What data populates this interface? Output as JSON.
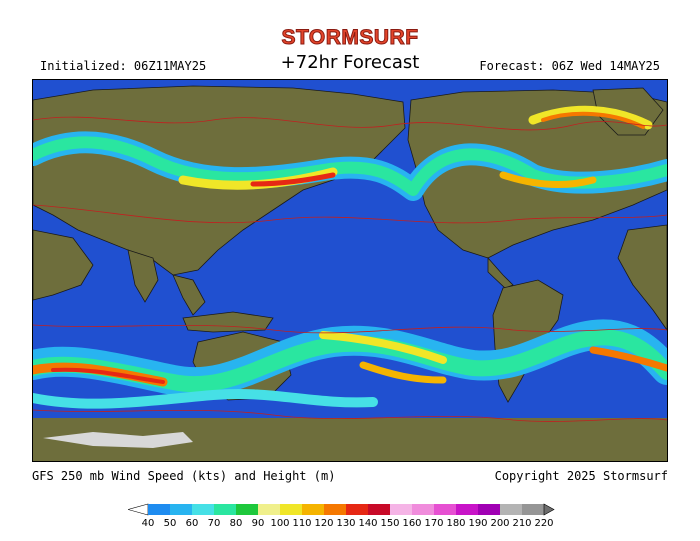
{
  "header": {
    "logo": "STORMSURF",
    "initialized": "Initialized: 06Z11MAY25",
    "title": "+72hr Forecast",
    "forecast": "Forecast: 06Z Wed 14MAY25"
  },
  "footer": {
    "product": "GFS 250 mb Wind Speed (kts) and Height (m)",
    "copyright": "Copyright 2025 Stormsurf"
  },
  "legend": {
    "units": "kts",
    "bins": [
      {
        "label": "40",
        "color": "#1e8cf0"
      },
      {
        "label": "50",
        "color": "#28b4f0"
      },
      {
        "label": "60",
        "color": "#46e0e6"
      },
      {
        "label": "70",
        "color": "#2ae6a0"
      },
      {
        "label": "80",
        "color": "#1ec83c"
      },
      {
        "label": "90",
        "color": "#f0f08c"
      },
      {
        "label": "100",
        "color": "#f0e628"
      },
      {
        "label": "110",
        "color": "#f5b400"
      },
      {
        "label": "120",
        "color": "#f57800"
      },
      {
        "label": "130",
        "color": "#e62814"
      },
      {
        "label": "140",
        "color": "#c80a28"
      },
      {
        "label": "150",
        "color": "#f5b4e6"
      },
      {
        "label": "160",
        "color": "#f08cdc"
      },
      {
        "label": "170",
        "color": "#e650d2"
      },
      {
        "label": "180",
        "color": "#c814c8"
      },
      {
        "label": "190",
        "color": "#a000b4"
      },
      {
        "label": "200",
        "color": "#b4b4b4"
      },
      {
        "label": "210",
        "color": "#969696"
      },
      {
        "label": "220",
        "color": "#6e6e6e"
      }
    ]
  },
  "colors": {
    "ocean": "#2050d0",
    "land": "#6e6e3c",
    "ice": "#d8d8d8",
    "height_contour": "#c02020"
  }
}
